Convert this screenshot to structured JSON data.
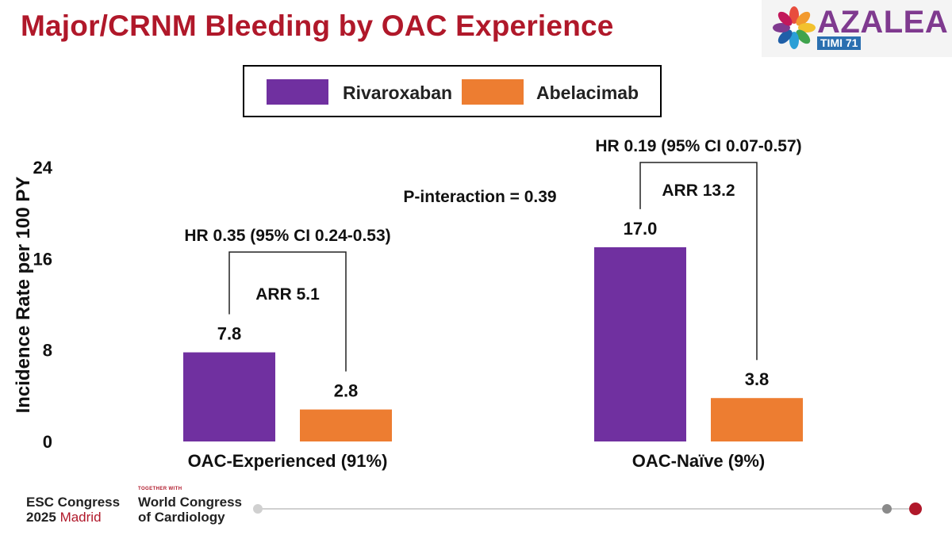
{
  "header": {
    "title": "Major/CRNM Bleeding by OAC Experience"
  },
  "logo": {
    "name": "AZALEA",
    "subtitle": "TIMI 71",
    "icon": "azalea-flower-icon"
  },
  "colors": {
    "title": "#b0182a",
    "rivaroxaban": "#7030a0",
    "abelacimab": "#ed7d31"
  },
  "chart_data": {
    "type": "bar",
    "ylabel": "Incidence Rate per 100 PY",
    "ylim": [
      0,
      24
    ],
    "yticks": [
      0,
      8,
      16,
      24
    ],
    "categories": [
      "OAC-Experienced (91%)",
      "OAC-Naïve (9%)"
    ],
    "series": [
      {
        "name": "Rivaroxaban",
        "values": [
          7.8,
          17.0
        ],
        "labels": [
          "7.8",
          "17.0"
        ],
        "color": "#7030a0"
      },
      {
        "name": "Abelacimab",
        "values": [
          2.8,
          3.8
        ],
        "labels": [
          "2.8",
          "3.8"
        ],
        "color": "#ed7d31"
      }
    ],
    "annotations": {
      "hr": [
        "HR 0.35 (95% CI 0.24-0.53)",
        "HR 0.19 (95% CI 0.07-0.57)"
      ],
      "arr": [
        "ARR 5.1",
        "ARR 13.2"
      ],
      "p_interaction": "P-interaction = 0.39"
    },
    "legend_position": "top-center"
  },
  "footer": {
    "esc_line1": "ESC Congress",
    "esc_year": "2025",
    "esc_city": "Madrid",
    "together": "TOGETHER WITH",
    "wcc_line1": "World Congress",
    "wcc_line2": "of Cardiology"
  }
}
